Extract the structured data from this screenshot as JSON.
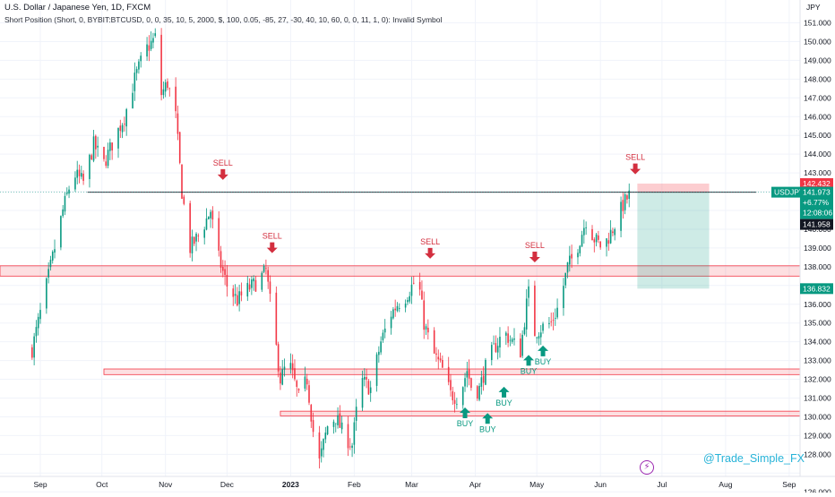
{
  "chart_data": {
    "type": "candlestick",
    "title": "U.S. Dollar / Japanese Yen, 1D, FXCM",
    "indicator": "Short Position (Short, 0, BYBIT:BTCUSD, 0, 0, 35, 10, 5, 2000, $, 100, 0.05, -85, 27, -30, 40, 10, 60, 0, 0, 11, 1, 0): Invalid Symbol",
    "currency_label": "JPY",
    "y_ticks": [
      126,
      127,
      128,
      129,
      130,
      131,
      132,
      133,
      134,
      135,
      136,
      137,
      138,
      139,
      140,
      141,
      142,
      143,
      144,
      145,
      146,
      147,
      148,
      149,
      150,
      151
    ],
    "y_tick_labels": [
      "126.000",
      "",
      "128.000",
      "129.000",
      "130.000",
      "131.000",
      "132.000",
      "133.000",
      "134.000",
      "135.000",
      "136.000",
      "",
      "138.000",
      "139.000",
      "140.000",
      "",
      "",
      "143.000",
      "144.000",
      "145.000",
      "146.000",
      "147.000",
      "148.000",
      "149.000",
      "150.000",
      "151.000"
    ],
    "x_ticks": [
      {
        "day": 4,
        "label": "Sep"
      },
      {
        "day": 34,
        "label": "Oct"
      },
      {
        "day": 65,
        "label": "Nov"
      },
      {
        "day": 95,
        "label": "Dec"
      },
      {
        "day": 126,
        "label": "2023"
      },
      {
        "day": 157,
        "label": "Feb"
      },
      {
        "day": 185,
        "label": "Mar"
      },
      {
        "day": 216,
        "label": "Apr"
      },
      {
        "day": 246,
        "label": "May"
      },
      {
        "day": 277,
        "label": "Jun"
      },
      {
        "day": 307,
        "label": "Jul"
      },
      {
        "day": 338,
        "label": "Aug"
      },
      {
        "day": 369,
        "label": "Sep"
      }
    ],
    "close_path": [
      [
        0,
        133.6
      ],
      [
        5,
        136.0
      ],
      [
        10,
        138.5
      ],
      [
        15,
        141.0
      ],
      [
        20,
        143.0
      ],
      [
        25,
        142.5
      ],
      [
        30,
        144.5
      ],
      [
        35,
        143.5
      ],
      [
        40,
        144.8
      ],
      [
        45,
        146.0
      ],
      [
        50,
        148.0
      ],
      [
        55,
        149.5
      ],
      [
        60,
        150.2
      ],
      [
        62,
        147.0
      ],
      [
        66,
        147.8
      ],
      [
        70,
        146.0
      ],
      [
        73,
        142.0
      ],
      [
        77,
        139.0
      ],
      [
        82,
        139.8
      ],
      [
        87,
        141.0
      ],
      [
        90,
        138.8
      ],
      [
        95,
        137.0
      ],
      [
        100,
        136.2
      ],
      [
        105,
        136.8
      ],
      [
        110,
        137.2
      ],
      [
        114,
        137.8
      ],
      [
        118,
        134.5
      ],
      [
        121,
        132.0
      ],
      [
        125,
        133.0
      ],
      [
        130,
        131.0
      ],
      [
        134,
        132.0
      ],
      [
        138,
        128.3
      ],
      [
        140,
        127.6
      ],
      [
        144,
        129.5
      ],
      [
        148,
        130.0
      ],
      [
        152,
        129.0
      ],
      [
        156,
        128.5
      ],
      [
        160,
        132.0
      ],
      [
        165,
        131.5
      ],
      [
        170,
        134.0
      ],
      [
        175,
        135.5
      ],
      [
        178,
        136.0
      ],
      [
        182,
        136.4
      ],
      [
        188,
        137.5
      ],
      [
        191,
        135.0
      ],
      [
        195,
        133.5
      ],
      [
        200,
        132.5
      ],
      [
        204,
        131.2
      ],
      [
        208,
        131.0
      ],
      [
        212,
        132.5
      ],
      [
        215,
        131.2
      ],
      [
        218,
        131.5
      ],
      [
        222,
        133.0
      ],
      [
        226,
        133.8
      ],
      [
        230,
        134.5
      ],
      [
        234,
        134.0
      ],
      [
        238,
        133.5
      ],
      [
        241,
        136.0
      ],
      [
        243,
        137.2
      ],
      [
        245,
        134.5
      ],
      [
        249,
        134.8
      ],
      [
        253,
        135.0
      ],
      [
        257,
        136.0
      ],
      [
        261,
        138.0
      ],
      [
        265,
        138.8
      ],
      [
        270,
        140.5
      ],
      [
        274,
        139.5
      ],
      [
        278,
        139.0
      ],
      [
        282,
        139.8
      ],
      [
        285,
        140.5
      ],
      [
        288,
        141.3
      ],
      [
        291,
        141.8
      ],
      [
        293,
        141.97
      ]
    ],
    "resistance_line": {
      "y": 141.97,
      "x_start": 27,
      "x_end": 353
    },
    "zones": [
      {
        "y_top": 138.05,
        "y_bottom": 137.5,
        "x_start": -20,
        "x_end": 380
      },
      {
        "y_top": 132.55,
        "y_bottom": 132.25,
        "x_start": 35,
        "x_end": 380
      },
      {
        "y_top": 130.3,
        "y_bottom": 130.05,
        "x_start": 121,
        "x_end": 380
      }
    ],
    "signals": [
      {
        "label": "SELL",
        "type": "sell",
        "x": 93,
        "y": 142.2
      },
      {
        "label": "SELL",
        "type": "sell",
        "x": 117,
        "y": 138.3
      },
      {
        "label": "SELL",
        "type": "sell",
        "x": 194,
        "y": 138.0
      },
      {
        "label": "SELL",
        "type": "sell",
        "x": 245,
        "y": 137.8
      },
      {
        "label": "SELL",
        "type": "sell",
        "x": 294,
        "y": 142.5
      },
      {
        "label": "BUY",
        "type": "buy",
        "x": 211,
        "y": 130.5
      },
      {
        "label": "BUY",
        "type": "buy",
        "x": 222,
        "y": 130.2
      },
      {
        "label": "BUY",
        "type": "buy",
        "x": 230,
        "y": 131.6
      },
      {
        "label": "BUY",
        "type": "buy",
        "x": 242,
        "y": 133.3
      },
      {
        "label": "BUY",
        "type": "buy",
        "x": 249,
        "y": 133.8
      }
    ],
    "position": {
      "x_start": 295,
      "x_end": 330,
      "entry": 141.958,
      "stop": 142.432,
      "target": 136.832
    },
    "price_tags": [
      {
        "label": "142.432",
        "color": "#f23645",
        "y": 142.432
      },
      {
        "label": "136.832",
        "color": "#089981",
        "y": 136.832
      }
    ],
    "last_price_box": {
      "symbol": "USDJPY",
      "price": "141.973",
      "change": "+6.77%",
      "countdown": "12:08:06",
      "entry_label": "141.958",
      "color": "#089981",
      "y": 141.973
    },
    "watermark": "@Trade_Simple_FX",
    "colors": {
      "up": "#089981",
      "down": "#f23645",
      "sell": "#d32f3f",
      "buy": "#089981"
    }
  }
}
